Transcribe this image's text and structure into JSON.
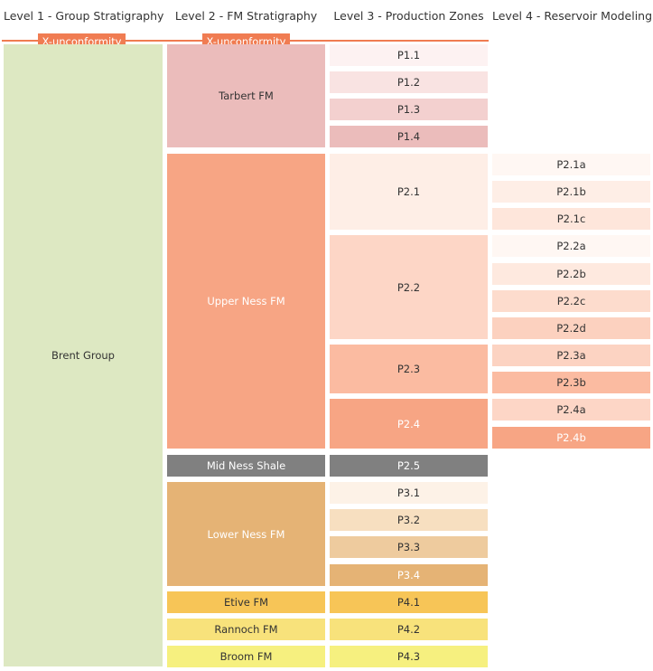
{
  "headers": {
    "level1": "Level 1 - Group Stratigraphy",
    "level2": "Level 2 - FM Stratigraphy",
    "level3": "Level 3 - Production Zones",
    "level4": "Level 4 - Reservoir Modeling"
  },
  "unconformity": {
    "level1_label": "X-unconformity",
    "level2_label": "X-unconformity",
    "line_color": "#f07c52"
  },
  "level1": {
    "group": {
      "label": "Brent Group",
      "color": "#dde8c2"
    }
  },
  "level2": {
    "tarbert": {
      "label": "Tarbert FM",
      "color": "#ebbcbb"
    },
    "upper_ness": {
      "label": "Upper Ness FM",
      "color": "#f7a584"
    },
    "mid_ness": {
      "label": "Mid Ness Shale",
      "color": "#808080"
    },
    "lower_ness": {
      "label": "Lower Ness FM",
      "color": "#e5b375"
    },
    "etive": {
      "label": "Etive FM",
      "color": "#f7c557"
    },
    "rannoch": {
      "label": "Rannoch FM",
      "color": "#f8e27b"
    },
    "broom": {
      "label": "Broom FM",
      "color": "#f6f07f"
    }
  },
  "level3": {
    "p1_1": {
      "label": "P1.1",
      "color": "#fdf2f2"
    },
    "p1_2": {
      "label": "P1.2",
      "color": "#f9e3e2"
    },
    "p1_3": {
      "label": "P1.3",
      "color": "#f3d0cf"
    },
    "p1_4": {
      "label": "P1.4",
      "color": "#ebbcbb"
    },
    "p2_1": {
      "label": "P2.1",
      "color": "#feeee6"
    },
    "p2_2": {
      "label": "P2.2",
      "color": "#fdd6c6"
    },
    "p2_3": {
      "label": "P2.3",
      "color": "#fbbba1"
    },
    "p2_4": {
      "label": "P2.4",
      "color": "#f7a584"
    },
    "p2_5": {
      "label": "P2.5",
      "color": "#808080"
    },
    "p3_1": {
      "label": "P3.1",
      "color": "#fdf2e7"
    },
    "p3_2": {
      "label": "P3.2",
      "color": "#f7dfc0"
    },
    "p3_3": {
      "label": "P3.3",
      "color": "#eecb9e"
    },
    "p3_4": {
      "label": "P3.4",
      "color": "#e5b375"
    },
    "p4_1": {
      "label": "P4.1",
      "color": "#f7c557"
    },
    "p4_2": {
      "label": "P4.2",
      "color": "#f8e27b"
    },
    "p4_3": {
      "label": "P4.3",
      "color": "#f6f07f"
    }
  },
  "level4": {
    "p2_1a": {
      "label": "P2.1a",
      "color": "#fff7f3"
    },
    "p2_1b": {
      "label": "P2.1b",
      "color": "#feeee6"
    },
    "p2_1c": {
      "label": "P2.1c",
      "color": "#fee6db"
    },
    "p2_2a": {
      "label": "P2.2a",
      "color": "#fff7f3"
    },
    "p2_2b": {
      "label": "P2.2b",
      "color": "#fee9df"
    },
    "p2_2c": {
      "label": "P2.2c",
      "color": "#fddccd"
    },
    "p2_2d": {
      "label": "P2.2d",
      "color": "#fcd1bf"
    },
    "p2_3a": {
      "label": "P2.3a",
      "color": "#fcd3c2"
    },
    "p2_3b": {
      "label": "P2.3b",
      "color": "#fbbba1"
    },
    "p2_4a": {
      "label": "P2.4a",
      "color": "#fdd6c6"
    },
    "p2_4b": {
      "label": "P2.4b",
      "color": "#f7a584"
    }
  }
}
